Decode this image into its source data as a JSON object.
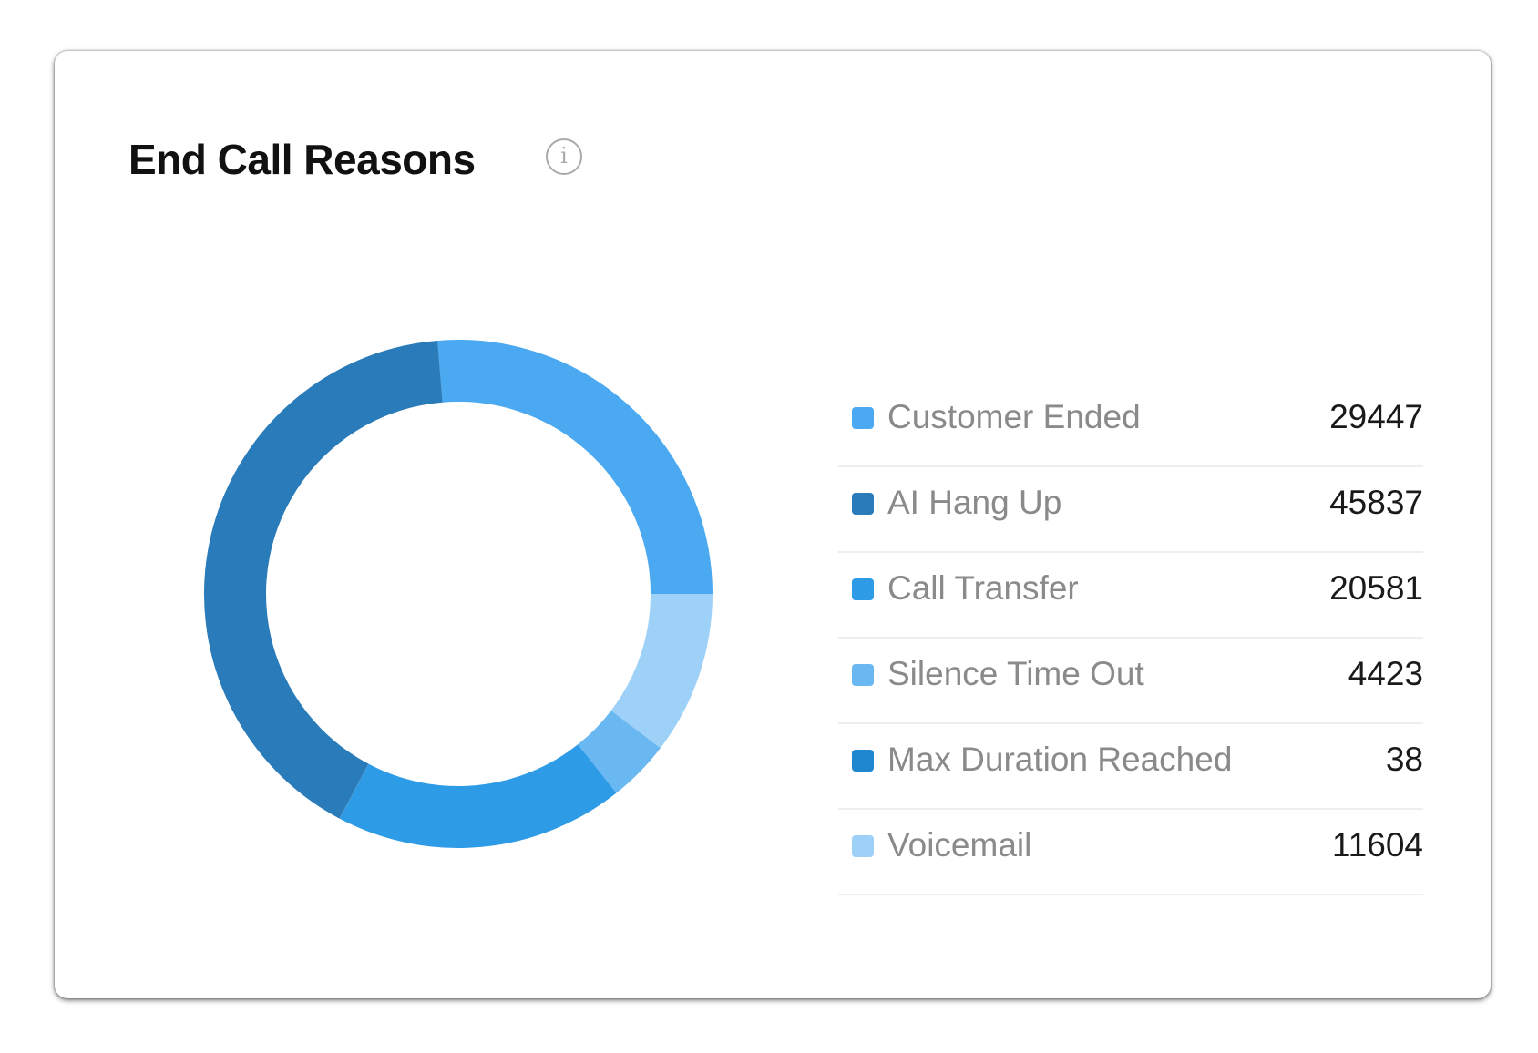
{
  "card": {
    "title": "End Call Reasons",
    "info_icon": "info-circle-icon"
  },
  "chart_data": {
    "type": "pie",
    "variant": "donut",
    "title": "End Call Reasons",
    "legend_position": "right",
    "categories": [
      "Customer Ended",
      "AI Hang Up",
      "Call Transfer",
      "Silence Time Out",
      "Max Duration Reached",
      "Voicemail"
    ],
    "values": [
      29447,
      45837,
      20581,
      4423,
      38,
      11604
    ],
    "colors": [
      "#4aa9f1",
      "#2a7bb9",
      "#2e9be6",
      "#6ab8f2",
      "#1f86d0",
      "#9ed1f8"
    ],
    "ring_order": [
      "Customer Ended",
      "Voicemail",
      "Silence Time Out",
      "Call Transfer",
      "Max Duration Reached",
      "AI Hang Up"
    ]
  }
}
